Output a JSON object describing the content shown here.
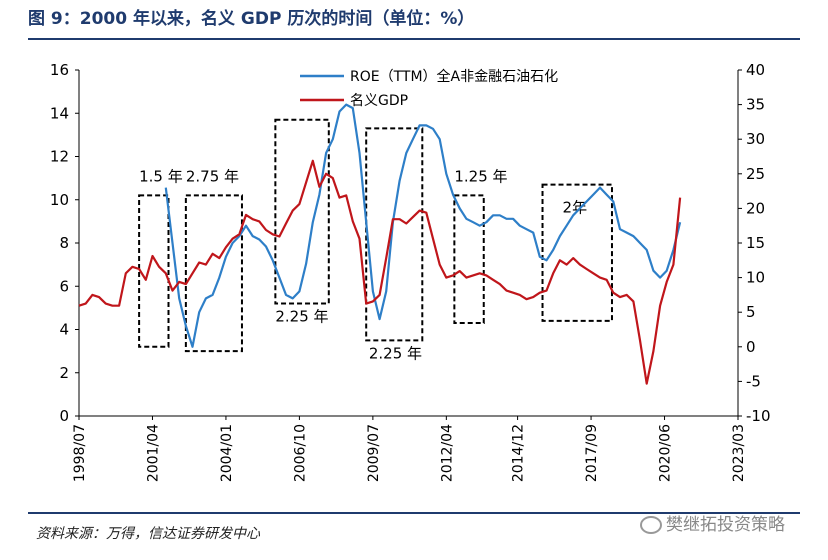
{
  "title": "图 9：2000 年以来，名义 GDP 历次的时间（单位：%）",
  "source": "资料来源：万得，信达证券研发中心",
  "watermark": "樊继拓投资策略",
  "chart_data": {
    "type": "line",
    "left_axis": {
      "ylim": [
        0,
        16
      ],
      "ticks": [
        "0",
        "2",
        "4",
        "6",
        "8",
        "10",
        "12",
        "14",
        "16"
      ]
    },
    "right_axis": {
      "ylim": [
        -10,
        40
      ],
      "ticks": [
        "-10",
        "-5",
        "0",
        "5",
        "10",
        "15",
        "20",
        "25",
        "30",
        "35",
        "40"
      ]
    },
    "x_ticks": [
      {
        "label": "1998/07",
        "t": 1998.5
      },
      {
        "label": "2001/04",
        "t": 2001.25
      },
      {
        "label": "2004/01",
        "t": 2004.0
      },
      {
        "label": "2006/10",
        "t": 2006.75
      },
      {
        "label": "2009/07",
        "t": 2009.5
      },
      {
        "label": "2012/04",
        "t": 2012.25
      },
      {
        "label": "2014/12",
        "t": 2014.917
      },
      {
        "label": "2017/09",
        "t": 2017.667
      },
      {
        "label": "2020/06",
        "t": 2020.417
      },
      {
        "label": "2023/03",
        "t": 2023.167
      }
    ],
    "xlim": [
      1998.5,
      2023.167
    ],
    "legend": "top-center",
    "colors": {
      "roe": "#2e7fc8",
      "gdp": "#c0161b"
    },
    "series": [
      {
        "name": "ROE（TTM）全A非金融石油石化",
        "axis": "right",
        "color": "#2e7fc8",
        "points": [
          [
            2001.75,
            23
          ],
          [
            2002.0,
            15
          ],
          [
            2002.25,
            7
          ],
          [
            2002.5,
            3
          ],
          [
            2002.75,
            0
          ],
          [
            2003.0,
            5
          ],
          [
            2003.25,
            7
          ],
          [
            2003.5,
            7.5
          ],
          [
            2003.75,
            10
          ],
          [
            2004.0,
            13
          ],
          [
            2004.25,
            15
          ],
          [
            2004.5,
            16
          ],
          [
            2004.75,
            17.5
          ],
          [
            2005.0,
            16
          ],
          [
            2005.25,
            15.5
          ],
          [
            2005.5,
            14.5
          ],
          [
            2005.75,
            12.5
          ],
          [
            2006.0,
            10
          ],
          [
            2006.25,
            7.5
          ],
          [
            2006.5,
            7
          ],
          [
            2006.75,
            8
          ],
          [
            2007.0,
            12
          ],
          [
            2007.25,
            18
          ],
          [
            2007.5,
            22
          ],
          [
            2007.75,
            28
          ],
          [
            2008.0,
            30
          ],
          [
            2008.25,
            34
          ],
          [
            2008.5,
            35
          ],
          [
            2008.75,
            34.5
          ],
          [
            2009.0,
            28
          ],
          [
            2009.25,
            18
          ],
          [
            2009.5,
            8
          ],
          [
            2009.75,
            4
          ],
          [
            2010.0,
            8
          ],
          [
            2010.25,
            18
          ],
          [
            2010.5,
            24
          ],
          [
            2010.75,
            28
          ],
          [
            2011.0,
            30
          ],
          [
            2011.25,
            32
          ],
          [
            2011.5,
            32
          ],
          [
            2011.75,
            31.5
          ],
          [
            2012.0,
            30
          ],
          [
            2012.25,
            25
          ],
          [
            2012.5,
            22
          ],
          [
            2012.75,
            20
          ],
          [
            2013.0,
            18.5
          ],
          [
            2013.25,
            18
          ],
          [
            2013.5,
            17.5
          ],
          [
            2013.75,
            18
          ],
          [
            2014.0,
            19
          ],
          [
            2014.25,
            19
          ],
          [
            2014.5,
            18.5
          ],
          [
            2014.75,
            18.5
          ],
          [
            2015.0,
            17.5
          ],
          [
            2015.25,
            17
          ],
          [
            2015.5,
            16.5
          ],
          [
            2015.75,
            13
          ],
          [
            2016.0,
            12.5
          ],
          [
            2016.25,
            14
          ],
          [
            2016.5,
            16
          ],
          [
            2016.75,
            17.5
          ],
          [
            2017.0,
            19
          ],
          [
            2017.25,
            20
          ],
          [
            2017.5,
            21
          ],
          [
            2017.75,
            22
          ],
          [
            2018.0,
            23
          ],
          [
            2018.25,
            22
          ],
          [
            2018.5,
            21
          ],
          [
            2018.75,
            17
          ],
          [
            2019.0,
            16.5
          ],
          [
            2019.25,
            16
          ],
          [
            2019.5,
            15
          ],
          [
            2019.75,
            14
          ],
          [
            2020.0,
            11
          ],
          [
            2020.25,
            10
          ],
          [
            2020.5,
            11
          ],
          [
            2020.75,
            14
          ],
          [
            2021.0,
            18
          ]
        ]
      },
      {
        "name": "名义GDP",
        "axis": "left",
        "color": "#c0161b",
        "points": [
          [
            1998.5,
            5.1
          ],
          [
            1998.75,
            5.2
          ],
          [
            1999.0,
            5.6
          ],
          [
            1999.25,
            5.5
          ],
          [
            1999.5,
            5.2
          ],
          [
            1999.75,
            5.1
          ],
          [
            2000.0,
            5.1
          ],
          [
            2000.25,
            6.6
          ],
          [
            2000.5,
            6.9
          ],
          [
            2000.75,
            6.8
          ],
          [
            2001.0,
            6.3
          ],
          [
            2001.25,
            7.4
          ],
          [
            2001.5,
            6.9
          ],
          [
            2001.75,
            6.6
          ],
          [
            2002.0,
            5.8
          ],
          [
            2002.25,
            6.2
          ],
          [
            2002.5,
            6.1
          ],
          [
            2002.75,
            6.6
          ],
          [
            2003.0,
            7.1
          ],
          [
            2003.25,
            7.0
          ],
          [
            2003.5,
            7.5
          ],
          [
            2003.75,
            7.3
          ],
          [
            2004.0,
            7.8
          ],
          [
            2004.25,
            8.2
          ],
          [
            2004.5,
            8.4
          ],
          [
            2004.75,
            9.3
          ],
          [
            2005.0,
            9.1
          ],
          [
            2005.25,
            9.0
          ],
          [
            2005.5,
            8.6
          ],
          [
            2005.75,
            8.4
          ],
          [
            2006.0,
            8.3
          ],
          [
            2006.25,
            8.9
          ],
          [
            2006.5,
            9.5
          ],
          [
            2006.75,
            9.8
          ],
          [
            2007.0,
            10.8
          ],
          [
            2007.25,
            11.8
          ],
          [
            2007.5,
            10.6
          ],
          [
            2007.75,
            11.2
          ],
          [
            2008.0,
            11.0
          ],
          [
            2008.25,
            10.1
          ],
          [
            2008.5,
            10.2
          ],
          [
            2008.75,
            9.0
          ],
          [
            2009.0,
            8.2
          ],
          [
            2009.25,
            5.2
          ],
          [
            2009.5,
            5.3
          ],
          [
            2009.75,
            5.6
          ],
          [
            2010.0,
            7.3
          ],
          [
            2010.25,
            9.1
          ],
          [
            2010.5,
            9.1
          ],
          [
            2010.75,
            8.9
          ],
          [
            2011.0,
            9.2
          ],
          [
            2011.25,
            9.5
          ],
          [
            2011.5,
            9.4
          ],
          [
            2011.75,
            8.2
          ],
          [
            2012.0,
            7.0
          ],
          [
            2012.25,
            6.4
          ],
          [
            2012.5,
            6.5
          ],
          [
            2012.75,
            6.7
          ],
          [
            2013.0,
            6.4
          ],
          [
            2013.25,
            6.5
          ],
          [
            2013.5,
            6.6
          ],
          [
            2013.75,
            6.5
          ],
          [
            2014.0,
            6.3
          ],
          [
            2014.25,
            6.1
          ],
          [
            2014.5,
            5.8
          ],
          [
            2014.75,
            5.7
          ],
          [
            2015.0,
            5.6
          ],
          [
            2015.25,
            5.4
          ],
          [
            2015.5,
            5.5
          ],
          [
            2015.75,
            5.7
          ],
          [
            2016.0,
            5.8
          ],
          [
            2016.25,
            6.6
          ],
          [
            2016.5,
            7.2
          ],
          [
            2016.75,
            7.0
          ],
          [
            2017.0,
            7.3
          ],
          [
            2017.25,
            7.0
          ],
          [
            2017.5,
            6.8
          ],
          [
            2017.75,
            6.6
          ],
          [
            2018.0,
            6.4
          ],
          [
            2018.25,
            6.3
          ],
          [
            2018.5,
            5.7
          ],
          [
            2018.75,
            5.5
          ],
          [
            2019.0,
            5.6
          ],
          [
            2019.25,
            5.3
          ],
          [
            2019.5,
            3.5
          ],
          [
            2019.75,
            1.5
          ],
          [
            2020.0,
            3.0
          ],
          [
            2020.25,
            5.1
          ],
          [
            2020.5,
            6.2
          ],
          [
            2020.75,
            7.0
          ],
          [
            2021.0,
            10.1
          ]
        ]
      }
    ],
    "annotations": [
      {
        "label": "1.5 年",
        "x0": 2000.75,
        "x1": 2001.85,
        "y0": 3.2,
        "y1": 10.2,
        "label_pos": "above",
        "label_x": 2000.75
      },
      {
        "label": "2.75 年",
        "x0": 2002.5,
        "x1": 2004.6,
        "y0": 3.0,
        "y1": 10.2,
        "label_pos": "above",
        "label_x": 2002.5
      },
      {
        "label": "2.25 年",
        "x0": 2005.85,
        "x1": 2007.85,
        "y0": 5.2,
        "y1": 13.7,
        "label_pos": "below",
        "label_x": 2005.85
      },
      {
        "label": "2.25 年",
        "x0": 2009.25,
        "x1": 2011.35,
        "y0": 3.5,
        "y1": 13.3,
        "label_pos": "below",
        "label_x": 2009.35
      },
      {
        "label": "1.25 年",
        "x0": 2012.55,
        "x1": 2013.65,
        "y0": 4.3,
        "y1": 10.2,
        "label_pos": "above",
        "label_x": 2012.55
      },
      {
        "label": "2年",
        "x0": 2015.85,
        "x1": 2018.45,
        "y0": 4.4,
        "y1": 10.7,
        "label_pos": "inside",
        "label_x": 2016.6
      }
    ]
  }
}
